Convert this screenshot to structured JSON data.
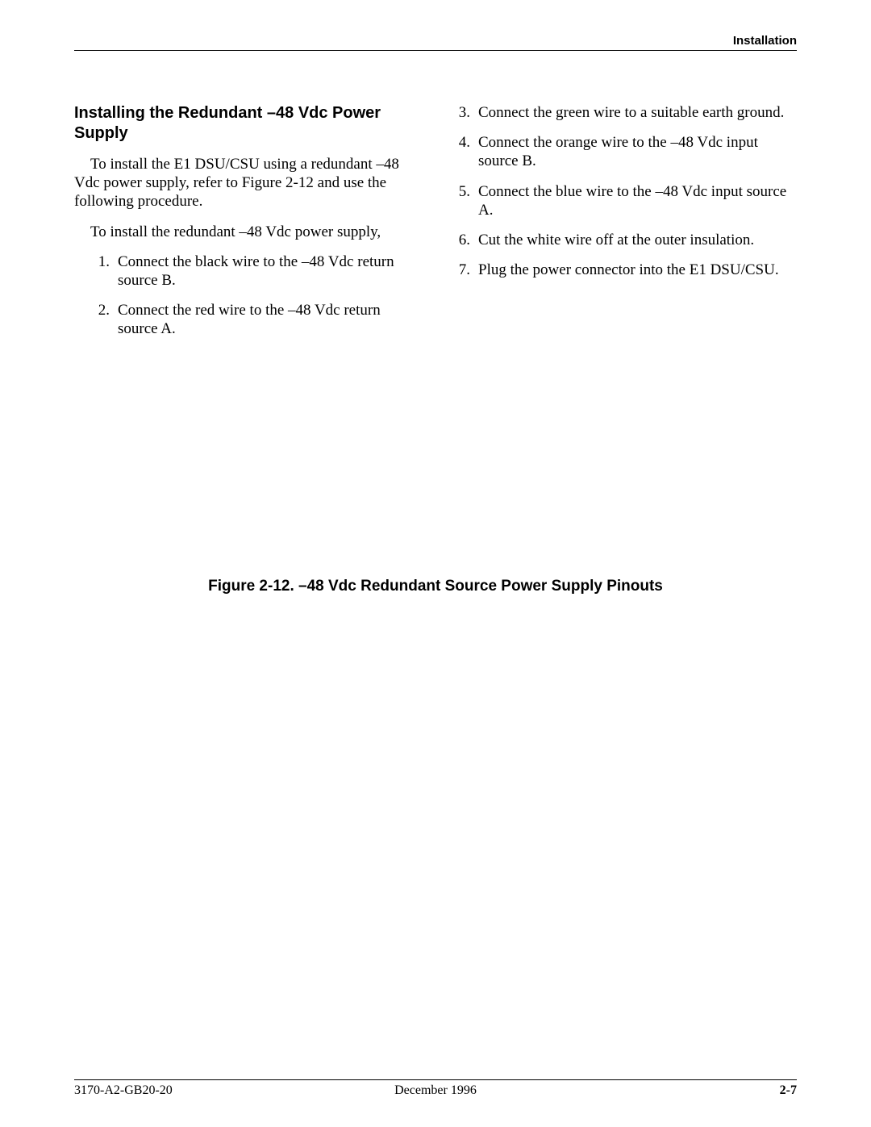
{
  "header": {
    "section_label": "Installation"
  },
  "section": {
    "heading": "Installing the Redundant –48 Vdc Power Supply",
    "intro": "To install the E1 DSU/CSU using a redundant –48 Vdc power supply, refer to Figure 2-12 and use the following procedure.",
    "lead": "To install the redundant –48 Vdc power supply,",
    "steps_left": [
      {
        "n": "1.",
        "text": "Connect the black wire to the –48 Vdc return source B."
      },
      {
        "n": "2.",
        "text": "Connect the red wire to the –48 Vdc return source A."
      }
    ],
    "steps_right": [
      {
        "n": "3.",
        "text": "Connect the green wire to a suitable earth ground."
      },
      {
        "n": "4.",
        "text": "Connect the orange wire to the –48 Vdc input source B."
      },
      {
        "n": "5.",
        "text": "Connect the blue wire to the –48 Vdc input source A."
      },
      {
        "n": "6.",
        "text": "Cut the white wire off at the outer insulation."
      },
      {
        "n": "7.",
        "text": "Plug the power connector into the E1 DSU/CSU."
      }
    ]
  },
  "figure": {
    "caption": "Figure 2-12.  –48 Vdc Redundant Source Power Supply Pinouts"
  },
  "footer": {
    "left": "3170-A2-GB20-20",
    "center": "December 1996",
    "right": "2-7"
  },
  "style": {
    "page_bg": "#ffffff",
    "text_color": "#000000",
    "heading_font": "Arial",
    "body_font": "Times New Roman",
    "heading_fontsize_pt": 15,
    "body_fontsize_pt": 14,
    "caption_fontsize_pt": 14
  }
}
